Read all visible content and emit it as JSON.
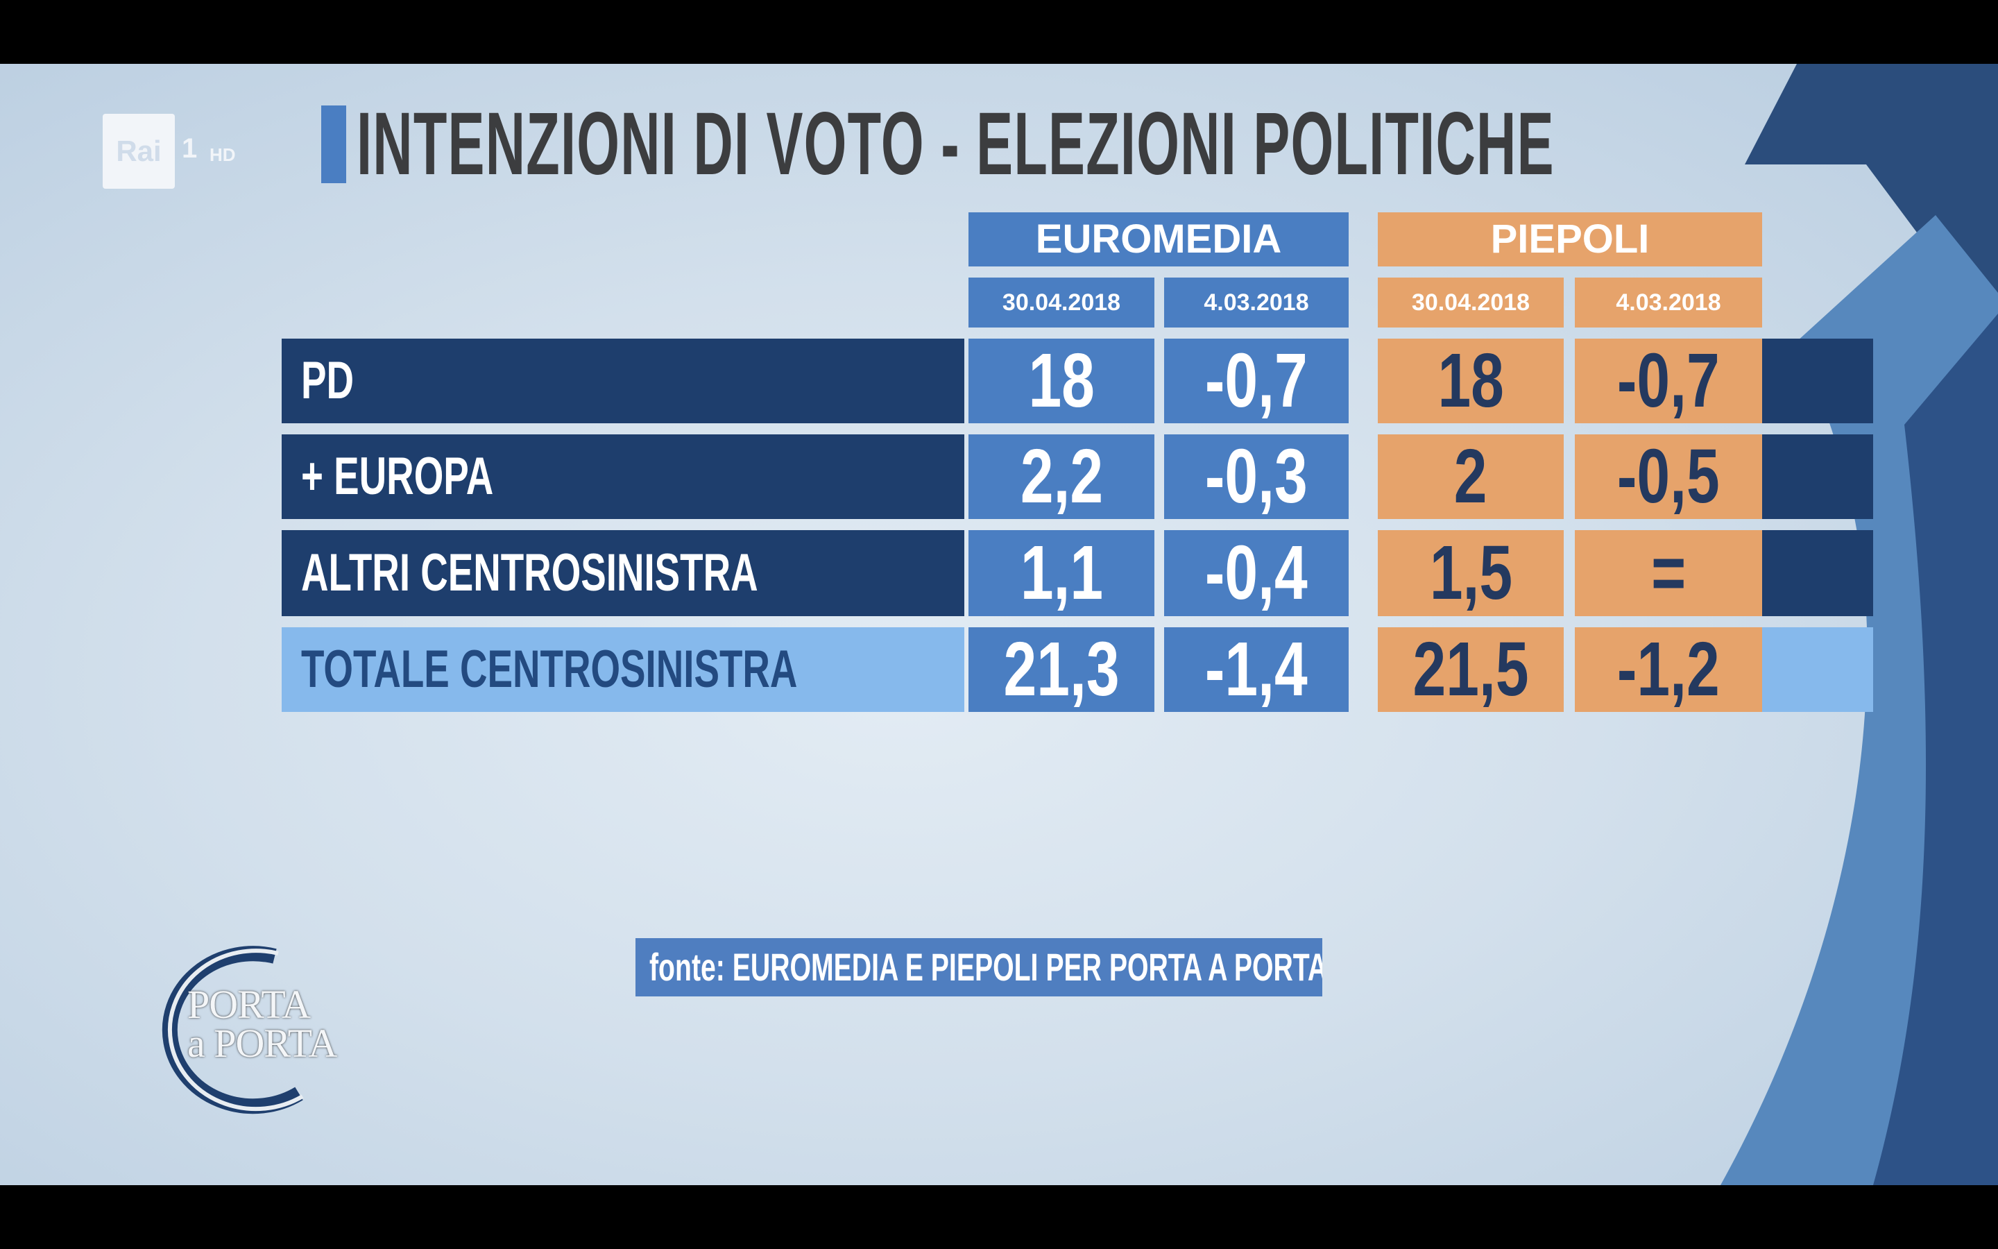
{
  "logo": {
    "brand": "Rai",
    "channel": "1",
    "quality": "HD"
  },
  "title": "INTENZIONI DI VOTO - ELEZIONI POLITICHE",
  "sources": [
    {
      "name": "EUROMEDIA",
      "dates": [
        "30.04.2018",
        "4.03.2018"
      ]
    },
    {
      "name": "PIEPOLI",
      "dates": [
        "30.04.2018",
        "4.03.2018"
      ]
    }
  ],
  "rows": [
    {
      "label": "PD",
      "values": [
        "18",
        "-0,7",
        "18",
        "-0,7"
      ]
    },
    {
      "label": "+ EUROPA",
      "values": [
        "2,2",
        "-0,3",
        "2",
        "-0,5"
      ]
    },
    {
      "label": "ALTRI CENTROSINISTRA",
      "values": [
        "1,1",
        "-0,4",
        "1,5",
        "="
      ]
    },
    {
      "label": "TOTALE CENTROSINISTRA",
      "values": [
        "21,3",
        "-1,4",
        "21,5",
        "-1,2"
      ]
    }
  ],
  "footer": {
    "source": "fonte: EUROMEDIA E PIEPOLI PER PORTA A PORTA"
  },
  "show_logo": {
    "line1": "PORTA",
    "line2": "a PORTA"
  },
  "colors": {
    "euromedia": "#4a7ec2",
    "piepoli": "#e6a36b",
    "row_dark": "#1e3e6d",
    "row_total": "#86b9ec",
    "title_text": "#3c3d3f"
  }
}
